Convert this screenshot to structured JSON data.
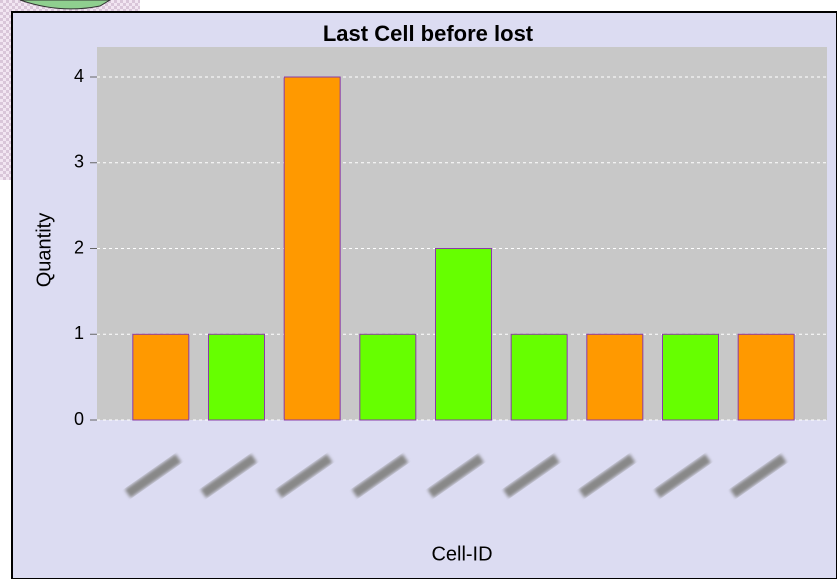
{
  "chart_data": {
    "type": "bar",
    "title": "Last Cell before lost",
    "x_label": "Cell-ID",
    "y_label": "Quantity",
    "categories": [
      null,
      null,
      null,
      null,
      null,
      null,
      null,
      null,
      null
    ],
    "values": [
      1,
      1,
      4,
      1,
      2,
      1,
      1,
      1,
      1
    ],
    "colors": [
      "#ff9900",
      "#66ff00",
      "#ff9900",
      "#66ff00",
      "#66ff00",
      "#66ff00",
      "#ff9900",
      "#66ff00",
      "#ff9900"
    ],
    "ylim": [
      0,
      4.35
    ],
    "yticks": [
      0,
      1,
      2,
      3,
      4
    ],
    "grid": true
  }
}
